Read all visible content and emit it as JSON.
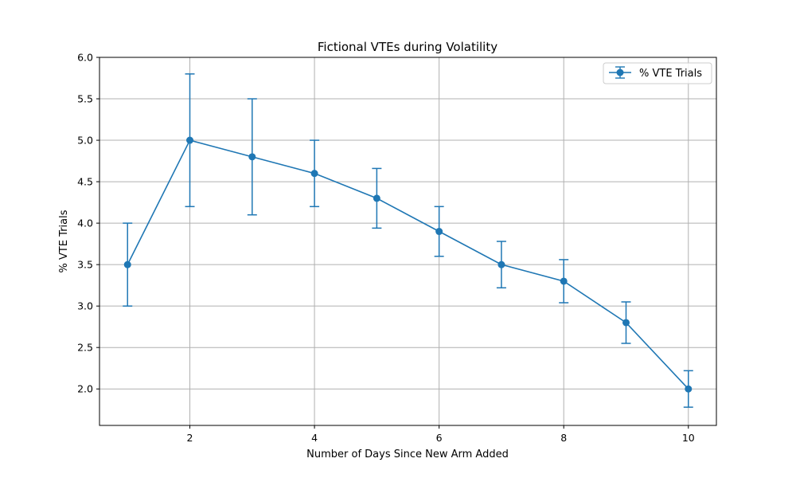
{
  "chart_data": {
    "type": "line",
    "title": "Fictional VTEs during Volatility",
    "xlabel": "Number of Days Since New Arm Added",
    "ylabel": "% VTE Trials",
    "x": [
      1,
      2,
      3,
      4,
      5,
      6,
      7,
      8,
      9,
      10
    ],
    "series": [
      {
        "name": "% VTE Trials",
        "values": [
          3.5,
          5.0,
          4.8,
          4.6,
          4.3,
          3.9,
          3.5,
          3.3,
          2.8,
          2.0
        ],
        "errors": [
          0.5,
          0.8,
          0.7,
          0.4,
          0.36,
          0.3,
          0.28,
          0.26,
          0.25,
          0.22
        ],
        "color": "#1f77b4",
        "marker": "circle"
      }
    ],
    "xlim": [
      0.55,
      10.45
    ],
    "ylim": [
      1.56,
      6.0
    ],
    "xticks": [
      "2",
      "4",
      "6",
      "8",
      "10"
    ],
    "yticks": [
      "2.0",
      "2.5",
      "3.0",
      "3.5",
      "4.0",
      "4.5",
      "5.0",
      "5.5",
      "6.0"
    ],
    "grid": true,
    "legend_position": "top-right"
  }
}
